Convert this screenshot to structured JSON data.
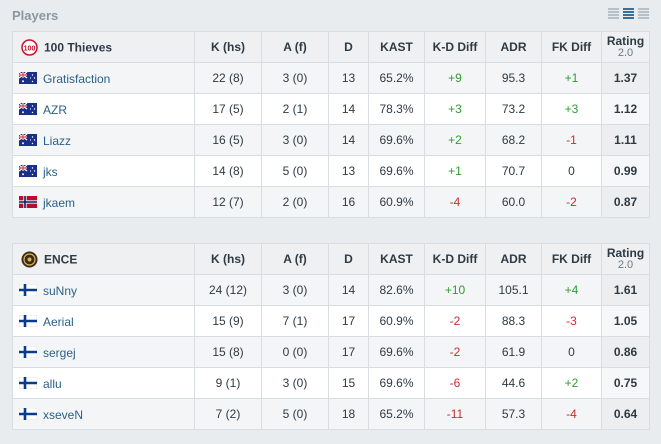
{
  "section": {
    "title": "Players"
  },
  "view_icons": [
    "grid-view-icon",
    "list-view-icon",
    "compact-view-icon"
  ],
  "columns": {
    "kills": "K (hs)",
    "assists": "A (f)",
    "deaths": "D",
    "kast": "KAST",
    "kd_diff": "K-D Diff",
    "adr": "ADR",
    "fk_diff": "FK Diff",
    "rating": "Rating",
    "rating_version": "2.0"
  },
  "colors": {
    "positive": "#2e9e32",
    "negative": "#c62f2f",
    "link": "#2c5f85"
  },
  "teams": [
    {
      "name": "100 Thieves",
      "logo_icon": "100-thieves-logo-icon",
      "players": [
        {
          "flag": "australia-flag-icon",
          "name": "Gratisfaction",
          "kills": "22 (8)",
          "assists": "3 (0)",
          "deaths": "13",
          "kast": "65.2%",
          "kd_diff": "+9",
          "kd_sign": "pos",
          "adr": "95.3",
          "fk_diff": "+1",
          "fk_sign": "pos",
          "rating": "1.37"
        },
        {
          "flag": "australia-flag-icon",
          "name": "AZR",
          "kills": "17 (5)",
          "assists": "2 (1)",
          "deaths": "14",
          "kast": "78.3%",
          "kd_diff": "+3",
          "kd_sign": "pos",
          "adr": "73.2",
          "fk_diff": "+3",
          "fk_sign": "pos",
          "rating": "1.12"
        },
        {
          "flag": "australia-flag-icon",
          "name": "Liazz",
          "kills": "16 (5)",
          "assists": "3 (0)",
          "deaths": "14",
          "kast": "69.6%",
          "kd_diff": "+2",
          "kd_sign": "pos",
          "adr": "68.2",
          "fk_diff": "-1",
          "fk_sign": "neg",
          "rating": "1.11"
        },
        {
          "flag": "australia-flag-icon",
          "name": "jks",
          "kills": "14 (8)",
          "assists": "5 (0)",
          "deaths": "13",
          "kast": "69.6%",
          "kd_diff": "+1",
          "kd_sign": "pos",
          "adr": "70.7",
          "fk_diff": "0",
          "fk_sign": "neu",
          "rating": "0.99"
        },
        {
          "flag": "norway-flag-icon",
          "name": "jkaem",
          "kills": "12 (7)",
          "assists": "2 (0)",
          "deaths": "16",
          "kast": "60.9%",
          "kd_diff": "-4",
          "kd_sign": "neg",
          "adr": "60.0",
          "fk_diff": "-2",
          "fk_sign": "neg",
          "rating": "0.87"
        }
      ]
    },
    {
      "name": "ENCE",
      "logo_icon": "ence-logo-icon",
      "players": [
        {
          "flag": "finland-flag-icon",
          "name": "suNny",
          "kills": "24 (12)",
          "assists": "3 (0)",
          "deaths": "14",
          "kast": "82.6%",
          "kd_diff": "+10",
          "kd_sign": "pos",
          "adr": "105.1",
          "fk_diff": "+4",
          "fk_sign": "pos",
          "rating": "1.61"
        },
        {
          "flag": "finland-flag-icon",
          "name": "Aerial",
          "kills": "15 (9)",
          "assists": "7 (1)",
          "deaths": "17",
          "kast": "60.9%",
          "kd_diff": "-2",
          "kd_sign": "neg",
          "adr": "88.3",
          "fk_diff": "-3",
          "fk_sign": "neg",
          "rating": "1.05"
        },
        {
          "flag": "finland-flag-icon",
          "name": "sergej",
          "kills": "15 (8)",
          "assists": "0 (0)",
          "deaths": "17",
          "kast": "69.6%",
          "kd_diff": "-2",
          "kd_sign": "neg",
          "adr": "61.9",
          "fk_diff": "0",
          "fk_sign": "neu",
          "rating": "0.86"
        },
        {
          "flag": "finland-flag-icon",
          "name": "allu",
          "kills": "9 (1)",
          "assists": "3 (0)",
          "deaths": "15",
          "kast": "69.6%",
          "kd_diff": "-6",
          "kd_sign": "neg",
          "adr": "44.6",
          "fk_diff": "+2",
          "fk_sign": "pos",
          "rating": "0.75"
        },
        {
          "flag": "finland-flag-icon",
          "name": "xseveN",
          "kills": "7 (2)",
          "assists": "5 (0)",
          "deaths": "18",
          "kast": "65.2%",
          "kd_diff": "-11",
          "kd_sign": "neg",
          "adr": "57.3",
          "fk_diff": "-4",
          "fk_sign": "neg",
          "rating": "0.64"
        }
      ]
    }
  ]
}
